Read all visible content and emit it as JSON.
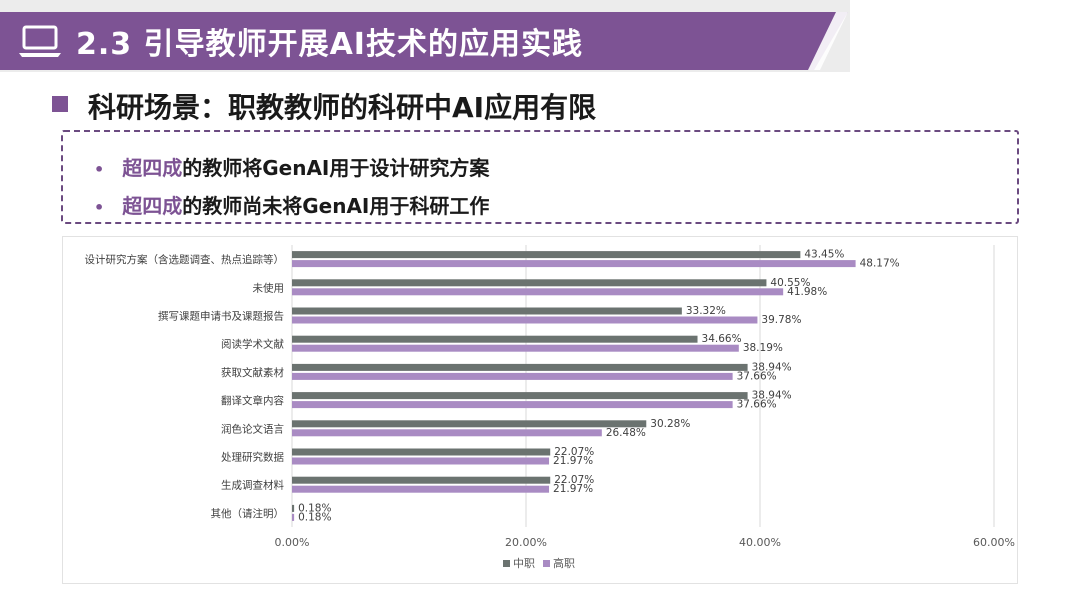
{
  "header": {
    "title": "2.3 引导教师开展AI技术的应用实践",
    "icon": "laptop-icon",
    "accent_color": "#7d5394"
  },
  "section": {
    "heading": "科研场景：职教教师的科研中AI应用有限"
  },
  "notes": [
    {
      "highlight": "超四成",
      "text": "的教师将GenAI用于设计研究方案"
    },
    {
      "highlight": "超四成",
      "text": "的教师尚未将GenAI用于科研工作"
    }
  ],
  "chart_data": {
    "type": "bar",
    "orientation": "horizontal",
    "categories": [
      "设计研究方案（含选题调查、热点追踪等）",
      "未使用",
      "撰写课题申请书及课题报告",
      "阅读学术文献",
      "获取文献素材",
      "翻译文章内容",
      "润色论文语言",
      "处理研究数据",
      "生成调查材料",
      "其他（请注明）"
    ],
    "series": [
      {
        "name": "中职",
        "color": "#6b7370",
        "values": [
          43.45,
          40.55,
          33.32,
          34.66,
          38.94,
          38.94,
          30.28,
          22.07,
          22.07,
          0.18
        ],
        "labels": [
          "43.45%",
          "40.55%",
          "33.32%",
          "34.66%",
          "38.94%",
          "38.94%",
          "30.28%",
          "22.07%",
          "22.07%",
          "0.18%"
        ]
      },
      {
        "name": "高职",
        "color": "#a98bc3",
        "values": [
          48.17,
          41.98,
          39.78,
          38.19,
          37.66,
          37.66,
          26.48,
          21.97,
          21.97,
          0.18
        ],
        "labels": [
          "48.17%",
          "41.98%",
          "39.78%",
          "38.19%",
          "37.66%",
          "37.66%",
          "26.48%",
          "21.97%",
          "21.97%",
          "0.18%"
        ]
      }
    ],
    "xlim": [
      0,
      60
    ],
    "xticks": [
      0,
      20,
      40,
      60
    ],
    "xtick_labels": [
      "0.00%",
      "20.00%",
      "40.00%",
      "60.00%"
    ],
    "grid": true,
    "legend_position": "bottom"
  }
}
